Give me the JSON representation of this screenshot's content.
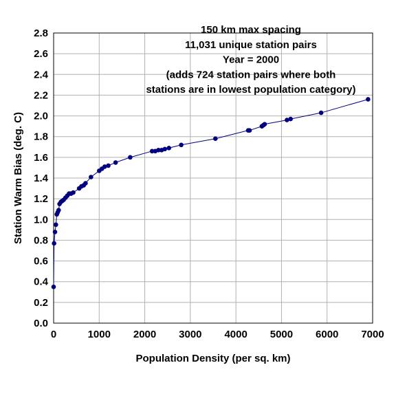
{
  "chart_data": {
    "type": "scatter",
    "title": "",
    "annotation_lines": [
      "150 km max spacing",
      "11,031 unique station pairs",
      "Year = 2000",
      "(adds 724 station pairs where both",
      "stations are in lowest population category)"
    ],
    "xlabel": "Population Density (per sq. km)",
    "ylabel": "Station Warm Bias (deg. C)",
    "xlim": [
      0,
      7000
    ],
    "ylim": [
      0,
      2.8
    ],
    "xticks": [
      "0",
      "1000",
      "2000",
      "3000",
      "4000",
      "5000",
      "6000",
      "7000"
    ],
    "yticks": [
      "0.0",
      "0.2",
      "0.4",
      "0.6",
      "0.8",
      "1.0",
      "1.2",
      "1.4",
      "1.6",
      "1.8",
      "2.0",
      "2.2",
      "2.4",
      "2.6",
      "2.8"
    ],
    "grid": true,
    "legend": "none",
    "series_color": "#000080",
    "x": [
      0,
      10,
      30,
      50,
      70,
      90,
      110,
      130,
      160,
      190,
      220,
      260,
      300,
      340,
      380,
      430,
      560,
      610,
      660,
      700,
      820,
      1000,
      1060,
      1120,
      1200,
      1360,
      1680,
      2160,
      2230,
      2300,
      2370,
      2440,
      2530,
      2800,
      3550,
      4270,
      4300,
      4570,
      4600,
      4630,
      5120,
      5200,
      5870,
      6900
    ],
    "y": [
      0.35,
      0.77,
      0.88,
      0.95,
      1.05,
      1.07,
      1.09,
      1.15,
      1.17,
      1.18,
      1.19,
      1.21,
      1.23,
      1.25,
      1.25,
      1.26,
      1.3,
      1.32,
      1.33,
      1.35,
      1.41,
      1.47,
      1.49,
      1.51,
      1.52,
      1.55,
      1.6,
      1.66,
      1.66,
      1.67,
      1.67,
      1.68,
      1.69,
      1.72,
      1.78,
      1.86,
      1.86,
      1.9,
      1.91,
      1.92,
      1.96,
      1.97,
      2.03,
      2.16
    ]
  }
}
